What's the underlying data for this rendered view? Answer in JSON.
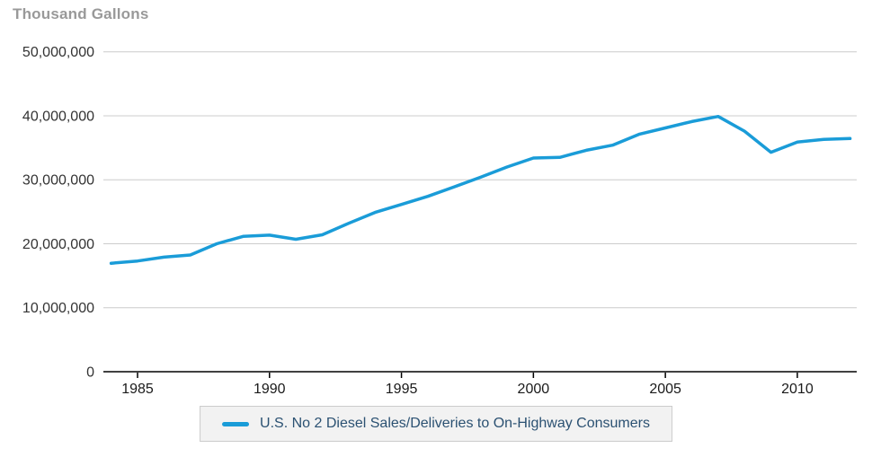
{
  "chart": {
    "unit_label": "Thousand Gallons",
    "colors": {
      "line": "#1a9cd8",
      "grid": "#cccccc",
      "axis": "#000000",
      "y_tick_label": "#333333",
      "x_tick_label": "#1a1a1a",
      "unit_label": "#999999",
      "legend_bg": "#f2f2f2",
      "legend_border": "#cccccc",
      "legend_text": "#2b5172"
    }
  },
  "legend": {
    "items": [
      {
        "label": "U.S. No 2 Diesel Sales/Deliveries to On-Highway Consumers",
        "color": "#1a9cd8"
      }
    ]
  },
  "chart_data": {
    "type": "line",
    "title": "",
    "ylabel": "Thousand Gallons",
    "xlabel": "",
    "ylim": [
      0,
      50000000
    ],
    "ytick_interval": 10000000,
    "ytick_labels": [
      "0",
      "10,000,000",
      "20,000,000",
      "30,000,000",
      "40,000,000",
      "50,000,000"
    ],
    "xticks": [
      1985,
      1990,
      1995,
      2000,
      2005,
      2010
    ],
    "grid": "horizontal",
    "legend_position": "bottom",
    "x": [
      1984,
      1985,
      1986,
      1987,
      1988,
      1989,
      1990,
      1991,
      1992,
      1993,
      1994,
      1995,
      1996,
      1997,
      1998,
      1999,
      2000,
      2001,
      2002,
      2003,
      2004,
      2005,
      2006,
      2007,
      2008,
      2009,
      2010,
      2011,
      2012
    ],
    "series": [
      {
        "name": "U.S. No 2 Diesel Sales/Deliveries to On-Highway Consumers",
        "values": [
          16950000,
          17300000,
          17900000,
          18250000,
          20000000,
          21150000,
          21350000,
          20700000,
          21400000,
          23200000,
          24900000,
          26150000,
          27400000,
          28900000,
          30400000,
          32000000,
          33400000,
          33500000,
          34600000,
          35400000,
          37100000,
          38100000,
          39100000,
          39900000,
          37600000,
          34300000,
          35900000,
          36300000,
          36450000
        ]
      }
    ]
  }
}
